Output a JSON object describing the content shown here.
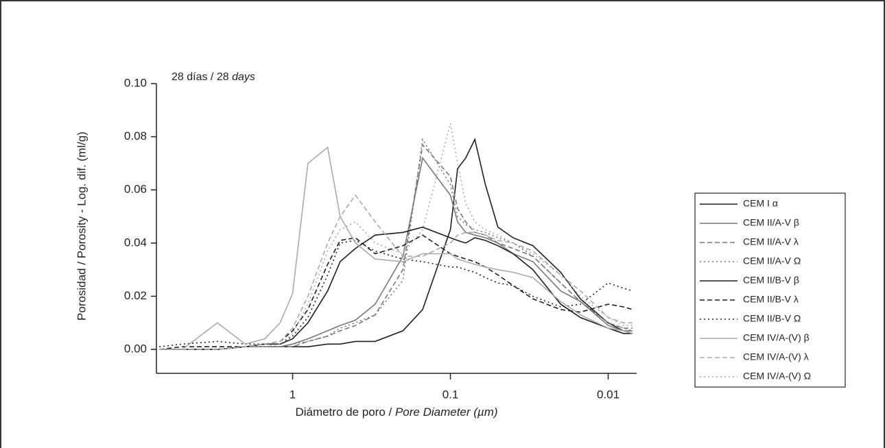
{
  "chart_data": {
    "type": "line",
    "annotation": [
      "28 días / 28 ",
      "days"
    ],
    "x_label": [
      "Diámetro de poro / ",
      "Pore Diameter (µm)"
    ],
    "y_label": "Porosidad / Porosity - Log. dif. (ml/g)",
    "xscale": "log",
    "xlim": [
      7.3,
      0.0066
    ],
    "xticks": [
      {
        "value": 1,
        "label": "1"
      },
      {
        "value": 0.1,
        "label": "0.1"
      },
      {
        "value": 0.01,
        "label": "0.01"
      }
    ],
    "ylim": [
      -0.009,
      0.1
    ],
    "yticks": [
      {
        "value": 0,
        "label": "0.00"
      },
      {
        "value": 0.02,
        "label": "0.02"
      },
      {
        "value": 0.04,
        "label": "0.04"
      },
      {
        "value": 0.06,
        "label": "0.06"
      },
      {
        "value": 0.08,
        "label": "0.08"
      },
      {
        "value": 0.1,
        "label": "0.10"
      }
    ],
    "legend": "right",
    "x": [
      7,
      5,
      3,
      2,
      1.5,
      1.2,
      1,
      0.8,
      0.6,
      0.5,
      0.4,
      0.3,
      0.2,
      0.15,
      0.1,
      0.09,
      0.08,
      0.07,
      0.06,
      0.05,
      0.04,
      0.03,
      0.02,
      0.015,
      0.01,
      0.008,
      0.007
    ],
    "series": [
      {
        "name": "CEM I α",
        "color": "#1e1e1e",
        "dash": "solid",
        "values": [
          0,
          0,
          0,
          0.001,
          0.001,
          0.001,
          0.001,
          0.001,
          0.002,
          0.002,
          0.003,
          0.003,
          0.007,
          0.015,
          0.045,
          0.068,
          0.072,
          0.079,
          0.062,
          0.046,
          0.042,
          0.039,
          0.029,
          0.019,
          0.01,
          0.007,
          0.006
        ]
      },
      {
        "name": "CEM II/A-V β",
        "color": "#777777",
        "dash": "solid",
        "values": [
          0,
          0,
          0,
          0.001,
          0.001,
          0.001,
          0.002,
          0.004,
          0.007,
          0.009,
          0.011,
          0.017,
          0.035,
          0.072,
          0.058,
          0.048,
          0.044,
          0.043,
          0.042,
          0.04,
          0.036,
          0.033,
          0.022,
          0.018,
          0.009,
          0.007,
          0.007
        ]
      },
      {
        "name": "CEM II/A-V λ",
        "color": "#777777",
        "dash": "dashed",
        "values": [
          0,
          0,
          0,
          0.001,
          0.001,
          0.001,
          0.001,
          0.003,
          0.005,
          0.007,
          0.009,
          0.013,
          0.03,
          0.077,
          0.065,
          0.053,
          0.048,
          0.044,
          0.043,
          0.04,
          0.038,
          0.035,
          0.025,
          0.018,
          0.01,
          0.008,
          0.008
        ]
      },
      {
        "name": "CEM II/A-V Ω",
        "color": "#777777",
        "dash": "dotted",
        "values": [
          0,
          0,
          0,
          0.001,
          0.001,
          0.001,
          0.002,
          0.003,
          0.005,
          0.008,
          0.01,
          0.013,
          0.026,
          0.079,
          0.062,
          0.05,
          0.047,
          0.045,
          0.044,
          0.042,
          0.04,
          0.035,
          0.025,
          0.018,
          0.01,
          0.008,
          0.007
        ]
      },
      {
        "name": "CEM II/B-V β",
        "color": "#1e1e1e",
        "dash": "solid",
        "values": [
          0,
          0,
          0,
          0.001,
          0.002,
          0.002,
          0.004,
          0.01,
          0.022,
          0.033,
          0.038,
          0.043,
          0.044,
          0.046,
          0.042,
          0.041,
          0.04,
          0.042,
          0.041,
          0.039,
          0.036,
          0.03,
          0.017,
          0.012,
          0.008,
          0.006,
          0.006
        ]
      },
      {
        "name": "CEM II/B-V λ",
        "color": "#1e1e1e",
        "dash": "dashed",
        "values": [
          0,
          0.001,
          0.001,
          0.001,
          0.002,
          0.003,
          0.007,
          0.015,
          0.032,
          0.041,
          0.042,
          0.036,
          0.039,
          0.043,
          0.036,
          0.035,
          0.034,
          0.033,
          0.031,
          0.028,
          0.024,
          0.019,
          0.015,
          0.014,
          0.017,
          0.016,
          0.015
        ]
      },
      {
        "name": "CEM II/B-V Ω",
        "color": "#1e1e1e",
        "dash": "dotted",
        "values": [
          0.001,
          0.002,
          0.003,
          0.002,
          0.002,
          0.002,
          0.005,
          0.012,
          0.028,
          0.04,
          0.041,
          0.037,
          0.034,
          0.033,
          0.031,
          0.031,
          0.03,
          0.029,
          0.027,
          0.025,
          0.024,
          0.02,
          0.016,
          0.017,
          0.025,
          0.023,
          0.022
        ]
      },
      {
        "name": "CEM IV/A-(V) β",
        "color": "#aaaaaa",
        "dash": "solid",
        "values": [
          0,
          0,
          0.01,
          0.002,
          0.004,
          0.01,
          0.021,
          0.07,
          0.076,
          0.05,
          0.04,
          0.034,
          0.033,
          0.036,
          0.036,
          0.034,
          0.033,
          0.032,
          0.031,
          0.03,
          0.029,
          0.027,
          0.018,
          0.013,
          0.008,
          0.007,
          0.006
        ]
      },
      {
        "name": "CEM IV/A-(V) λ",
        "color": "#aaaaaa",
        "dash": "dashed",
        "values": [
          0,
          0,
          0,
          0.001,
          0.002,
          0.003,
          0.008,
          0.02,
          0.04,
          0.05,
          0.058,
          0.048,
          0.035,
          0.035,
          0.04,
          0.043,
          0.044,
          0.044,
          0.043,
          0.041,
          0.04,
          0.037,
          0.028,
          0.022,
          0.012,
          0.01,
          0.01
        ]
      },
      {
        "name": "CEM IV/A-(V) Ω",
        "color": "#aaaaaa",
        "dash": "dotted",
        "values": [
          0,
          0,
          0,
          0.001,
          0.001,
          0.002,
          0.006,
          0.017,
          0.037,
          0.045,
          0.048,
          0.04,
          0.036,
          0.045,
          0.085,
          0.07,
          0.055,
          0.048,
          0.045,
          0.043,
          0.04,
          0.036,
          0.028,
          0.02,
          0.012,
          0.009,
          0.009
        ]
      }
    ]
  }
}
